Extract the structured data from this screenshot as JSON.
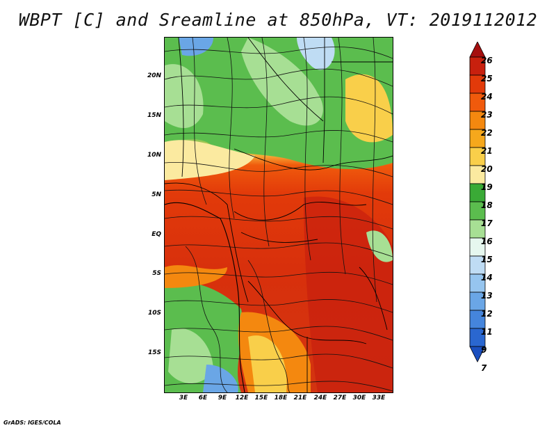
{
  "title": "WBPT [C] and Sreamline at 850hPa, VT: 2019112012",
  "credit": "GrADS: IGES/COLA",
  "map": {
    "lat_labels": [
      "20N",
      "15N",
      "10N",
      "5N",
      "EQ",
      "5S",
      "10S",
      "15S"
    ],
    "lon_labels": [
      "3E",
      "6E",
      "9E",
      "12E",
      "15E",
      "18E",
      "21E",
      "24E",
      "27E",
      "30E",
      "33E"
    ]
  },
  "colorbar": {
    "labels": [
      "26",
      "25",
      "24",
      "23",
      "22",
      "21",
      "20",
      "19",
      "18",
      "17",
      "16",
      "15",
      "14",
      "13",
      "12",
      "11",
      "9",
      "7"
    ],
    "colors": [
      "#a50f0f",
      "#c8200e",
      "#e23a0a",
      "#f05a0c",
      "#f4880f",
      "#f6a81c",
      "#f9cf4a",
      "#fbeaa0",
      "#3aaa36",
      "#5bbd4e",
      "#a7df94",
      "#e6f7ef",
      "#bfdcf4",
      "#96c5ef",
      "#6aa6e6",
      "#4585dc",
      "#2a67d0",
      "#1a4fbf"
    ]
  }
}
